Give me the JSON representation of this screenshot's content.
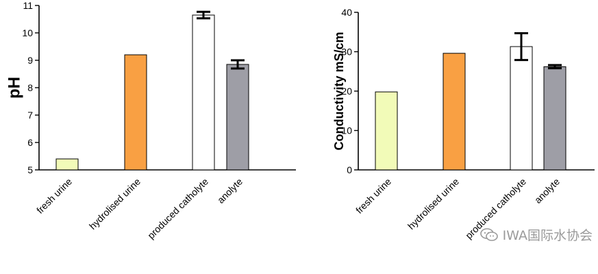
{
  "chart_data": [
    {
      "type": "bar",
      "categories": [
        "fresh urine",
        "hydrolised urine",
        "produced catholyte",
        "anolyte"
      ],
      "values": [
        5.4,
        9.2,
        10.65,
        8.85
      ],
      "errors": [
        null,
        null,
        0.12,
        0.15
      ],
      "colors": [
        "#f2fbb8",
        "#f9a043",
        "#ffffff",
        "#9e9ea6"
      ],
      "ylabel": "pH",
      "ylim": [
        5,
        11
      ],
      "yticks": [
        5,
        6,
        7,
        8,
        9,
        10,
        11
      ],
      "grid": false
    },
    {
      "type": "bar",
      "categories": [
        "fresh urine",
        "hydrolised urine",
        "produced catholyte",
        "anolyte"
      ],
      "values": [
        19.8,
        29.6,
        31.3,
        26.2
      ],
      "errors": [
        null,
        null,
        3.4,
        0.4
      ],
      "colors": [
        "#f2fbb8",
        "#f9a043",
        "#ffffff",
        "#9e9ea6"
      ],
      "ylabel": "Conductivity mS/cm",
      "ylim": [
        0,
        40
      ],
      "yticks": [
        0,
        10,
        20,
        30,
        40
      ],
      "grid": false
    }
  ],
  "watermark": {
    "icon": "wechat-icon",
    "text": "IWA国际水协会"
  }
}
